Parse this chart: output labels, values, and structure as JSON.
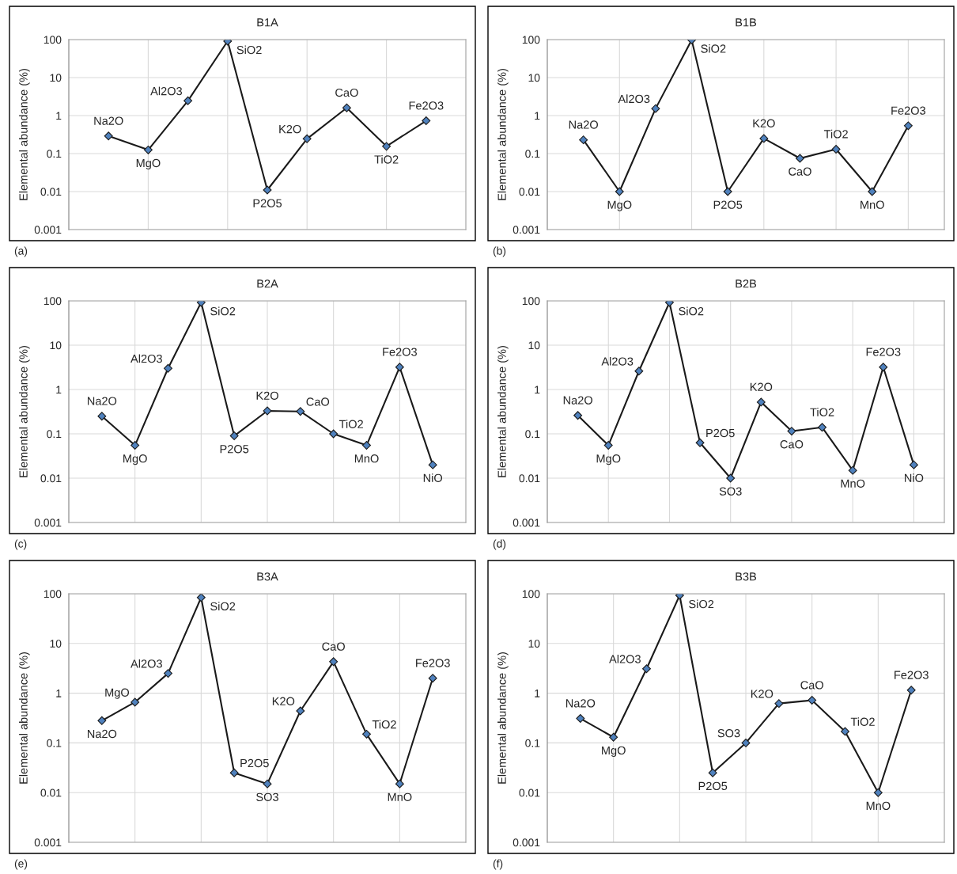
{
  "chart_data": [
    {
      "type": "line",
      "title": "B1A",
      "ylabel": "Elemental abundance (%)",
      "annotations": [
        "(a)"
      ],
      "categories": [
        null,
        null,
        null,
        null,
        null,
        null,
        null,
        null,
        null
      ],
      "log": true,
      "ylim": [
        0.001,
        100
      ],
      "yticks": [
        0.001,
        0.01,
        0.1,
        1,
        10,
        100
      ],
      "grid": true,
      "marker": "diamond",
      "line_style": "solid",
      "series": [
        {
          "color": "#1a1a1a",
          "values": [
            0.29,
            0.125,
            2.45,
            91,
            0.011,
            0.245,
            1.6,
            0.155,
            0.73
          ],
          "value_labels": [
            "Na2O",
            "MgO",
            "Al2O3",
            "SiO2",
            "P2O5",
            "K2O",
            "CaO",
            "TiO2",
            "Fe2O3"
          ]
        }
      ]
    },
    {
      "type": "line",
      "title": "B1B",
      "ylabel": "Elemental abundance (%)",
      "annotations": [
        "(b)"
      ],
      "categories": [
        null,
        null,
        null,
        null,
        null,
        null,
        null,
        null,
        null,
        null
      ],
      "log": true,
      "ylim": [
        0.001,
        100
      ],
      "yticks": [
        0.001,
        0.01,
        0.1,
        1,
        10,
        100
      ],
      "grid": true,
      "marker": "diamond",
      "line_style": "solid",
      "series": [
        {
          "color": "#1a1a1a",
          "values": [
            0.23,
            0.01,
            1.53,
            98,
            0.01,
            0.25,
            0.075,
            0.13,
            0.01,
            0.54
          ],
          "value_labels": [
            "Na2O",
            "MgO",
            "Al2O3",
            "SiO2",
            "P2O5",
            "K2O",
            "CaO",
            "TiO2",
            "MnO",
            "Fe2O3"
          ]
        }
      ]
    },
    {
      "type": "line",
      "title": "B2A",
      "ylabel": "Elemental abundance (%)",
      "annotations": [
        "(c)"
      ],
      "categories": [
        null,
        null,
        null,
        null,
        null,
        null,
        null,
        null,
        null,
        null,
        null
      ],
      "log": true,
      "ylim": [
        0.001,
        100
      ],
      "yticks": [
        0.001,
        0.01,
        0.1,
        1,
        10,
        100
      ],
      "grid": true,
      "marker": "diamond",
      "line_style": "solid",
      "series": [
        {
          "color": "#1a1a1a",
          "values": [
            0.25,
            0.055,
            3.0,
            92,
            0.09,
            0.33,
            0.32,
            0.1,
            0.055,
            3.2,
            0.02
          ],
          "value_labels": [
            "Na2O",
            "MgO",
            "Al2O3",
            "SiO2",
            "P2O5",
            "K2O",
            "CaO",
            "TiO2",
            "MnO",
            "Fe2O3",
            "NiO"
          ]
        }
      ]
    },
    {
      "type": "line",
      "title": "B2B",
      "ylabel": "Elemental abundance (%)",
      "annotations": [
        "(d)"
      ],
      "categories": [
        null,
        null,
        null,
        null,
        null,
        null,
        null,
        null,
        null,
        null,
        null,
        null
      ],
      "log": true,
      "ylim": [
        0.001,
        100
      ],
      "yticks": [
        0.001,
        0.01,
        0.1,
        1,
        10,
        100
      ],
      "grid": true,
      "marker": "diamond",
      "line_style": "solid",
      "series": [
        {
          "color": "#1a1a1a",
          "values": [
            0.26,
            0.055,
            2.6,
            92,
            0.063,
            0.01,
            0.52,
            0.115,
            0.14,
            0.015,
            3.2,
            0.02
          ],
          "value_labels": [
            "Na2O",
            "MgO",
            "Al2O3",
            "SiO2",
            "P2O5",
            "SO3",
            "K2O",
            "CaO",
            "TiO2",
            "MnO",
            "Fe2O3",
            "NiO"
          ]
        }
      ]
    },
    {
      "type": "line",
      "title": "B3A",
      "ylabel": "Elemental abundance (%)",
      "annotations": [
        "(e)"
      ],
      "categories": [
        null,
        null,
        null,
        null,
        null,
        null,
        null,
        null,
        null,
        null,
        null
      ],
      "log": true,
      "ylim": [
        0.001,
        100
      ],
      "yticks": [
        0.001,
        0.01,
        0.1,
        1,
        10,
        100
      ],
      "grid": true,
      "marker": "diamond",
      "line_style": "solid",
      "series": [
        {
          "color": "#1a1a1a",
          "values": [
            0.28,
            0.66,
            2.5,
            84,
            0.025,
            0.015,
            0.44,
            4.3,
            0.15,
            0.015,
            2.0
          ],
          "value_labels": [
            "Na2O",
            "MgO",
            "Al2O3",
            "SiO2",
            "P2O5",
            "SO3",
            "K2O",
            "CaO",
            "TiO2",
            "MnO",
            "Fe2O3"
          ]
        }
      ]
    },
    {
      "type": "line",
      "title": "B3B",
      "ylabel": "Elemental abundance (%)",
      "annotations": [
        "(f)"
      ],
      "categories": [
        null,
        null,
        null,
        null,
        null,
        null,
        null,
        null,
        null,
        null,
        null
      ],
      "log": true,
      "ylim": [
        0.001,
        100
      ],
      "yticks": [
        0.001,
        0.01,
        0.1,
        1,
        10,
        100
      ],
      "grid": true,
      "marker": "diamond",
      "line_style": "solid",
      "series": [
        {
          "color": "#1a1a1a",
          "values": [
            0.31,
            0.13,
            3.1,
            93,
            0.025,
            0.1,
            0.62,
            0.72,
            0.17,
            0.01,
            1.15
          ],
          "value_labels": [
            "Na2O",
            "MgO",
            "Al2O3",
            "SiO2",
            "P2O5",
            "SO3",
            "K2O",
            "CaO",
            "TiO2",
            "MnO",
            "Fe2O3"
          ]
        }
      ]
    }
  ]
}
